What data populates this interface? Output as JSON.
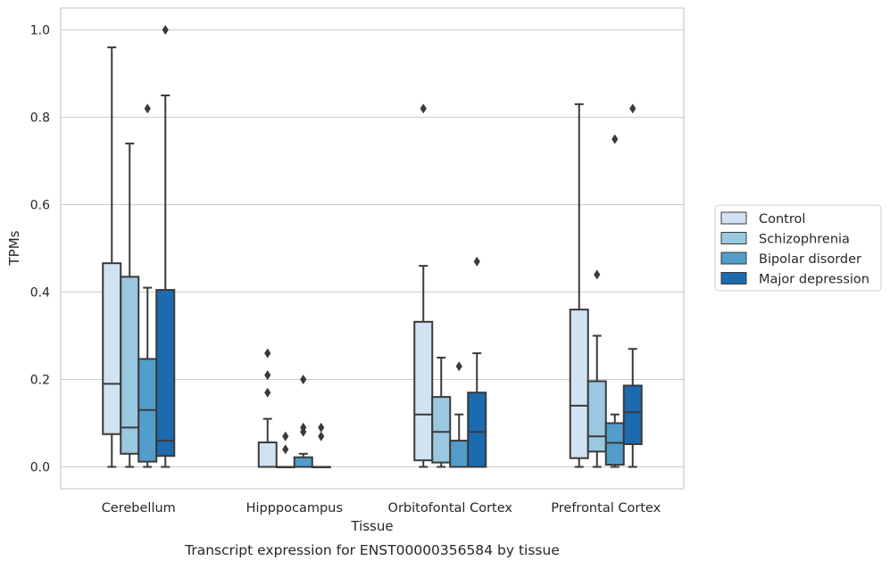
{
  "chart_data": {
    "type": "boxplot",
    "title": "",
    "caption": "Transcript expression for ENST00000356584 by tissue",
    "xlabel": "Tissue",
    "ylabel": "TPMs",
    "ylim": [
      -0.05,
      1.05
    ],
    "yticks": [
      0.0,
      0.2,
      0.4,
      0.6,
      0.8,
      1.0
    ],
    "ytick_labels": [
      "0.0",
      "0.2",
      "0.4",
      "0.6",
      "0.8",
      "1.0"
    ],
    "grid": "horizontal",
    "legend_position": "right",
    "categories": [
      "Cerebellum",
      "Hipppocampus",
      "Orbitofontal Cortex",
      "Prefrontal Cortex"
    ],
    "series": [
      {
        "name": "Control",
        "color": "#d1e2f2",
        "boxes": [
          {
            "whisker_low": 0.0,
            "q1": 0.075,
            "median": 0.19,
            "q3": 0.466,
            "whisker_high": 0.96,
            "outliers": []
          },
          {
            "whisker_low": 0.0,
            "q1": 0.0,
            "median": 0.0,
            "q3": 0.056,
            "whisker_high": 0.11,
            "outliers": [
              0.17,
              0.21,
              0.26
            ]
          },
          {
            "whisker_low": 0.0,
            "q1": 0.015,
            "median": 0.12,
            "q3": 0.332,
            "whisker_high": 0.46,
            "outliers": [
              0.82
            ]
          },
          {
            "whisker_low": 0.0,
            "q1": 0.02,
            "median": 0.14,
            "q3": 0.36,
            "whisker_high": 0.83,
            "outliers": []
          }
        ]
      },
      {
        "name": "Schizophrenia",
        "color": "#9ac8e0",
        "boxes": [
          {
            "whisker_low": 0.0,
            "q1": 0.03,
            "median": 0.09,
            "q3": 0.435,
            "whisker_high": 0.74,
            "outliers": []
          },
          {
            "whisker_low": 0.0,
            "q1": 0.0,
            "median": 0.0,
            "q3": 0.0,
            "whisker_high": 0.0,
            "outliers": [
              0.04,
              0.07
            ]
          },
          {
            "whisker_low": 0.0,
            "q1": 0.01,
            "median": 0.08,
            "q3": 0.16,
            "whisker_high": 0.25,
            "outliers": []
          },
          {
            "whisker_low": 0.0,
            "q1": 0.035,
            "median": 0.07,
            "q3": 0.196,
            "whisker_high": 0.3,
            "outliers": [
              0.44
            ]
          }
        ]
      },
      {
        "name": "Bipolar disorder",
        "color": "#529dcc",
        "boxes": [
          {
            "whisker_low": 0.0,
            "q1": 0.012,
            "median": 0.13,
            "q3": 0.247,
            "whisker_high": 0.41,
            "outliers": [
              0.82
            ]
          },
          {
            "whisker_low": 0.0,
            "q1": 0.0,
            "median": 0.0,
            "q3": 0.022,
            "whisker_high": 0.03,
            "outliers": [
              0.08,
              0.09,
              0.2
            ]
          },
          {
            "whisker_low": 0.0,
            "q1": 0.0,
            "median": 0.0,
            "q3": 0.06,
            "whisker_high": 0.12,
            "outliers": [
              0.23
            ]
          },
          {
            "whisker_low": 0.0,
            "q1": 0.005,
            "median": 0.055,
            "q3": 0.1,
            "whisker_high": 0.12,
            "outliers": [
              0.75
            ]
          }
        ]
      },
      {
        "name": "Major depression",
        "color": "#1c6aaf",
        "boxes": [
          {
            "whisker_low": 0.0,
            "q1": 0.025,
            "median": 0.06,
            "q3": 0.405,
            "whisker_high": 0.85,
            "outliers": [
              1.0
            ]
          },
          {
            "whisker_low": 0.0,
            "q1": 0.0,
            "median": 0.0,
            "q3": 0.0,
            "whisker_high": 0.0,
            "outliers": [
              0.07,
              0.09
            ]
          },
          {
            "whisker_low": 0.0,
            "q1": 0.0,
            "median": 0.08,
            "q3": 0.17,
            "whisker_high": 0.26,
            "outliers": [
              0.47
            ]
          },
          {
            "whisker_low": 0.0,
            "q1": 0.052,
            "median": 0.125,
            "q3": 0.186,
            "whisker_high": 0.27,
            "outliers": [
              0.82
            ]
          }
        ]
      }
    ]
  }
}
